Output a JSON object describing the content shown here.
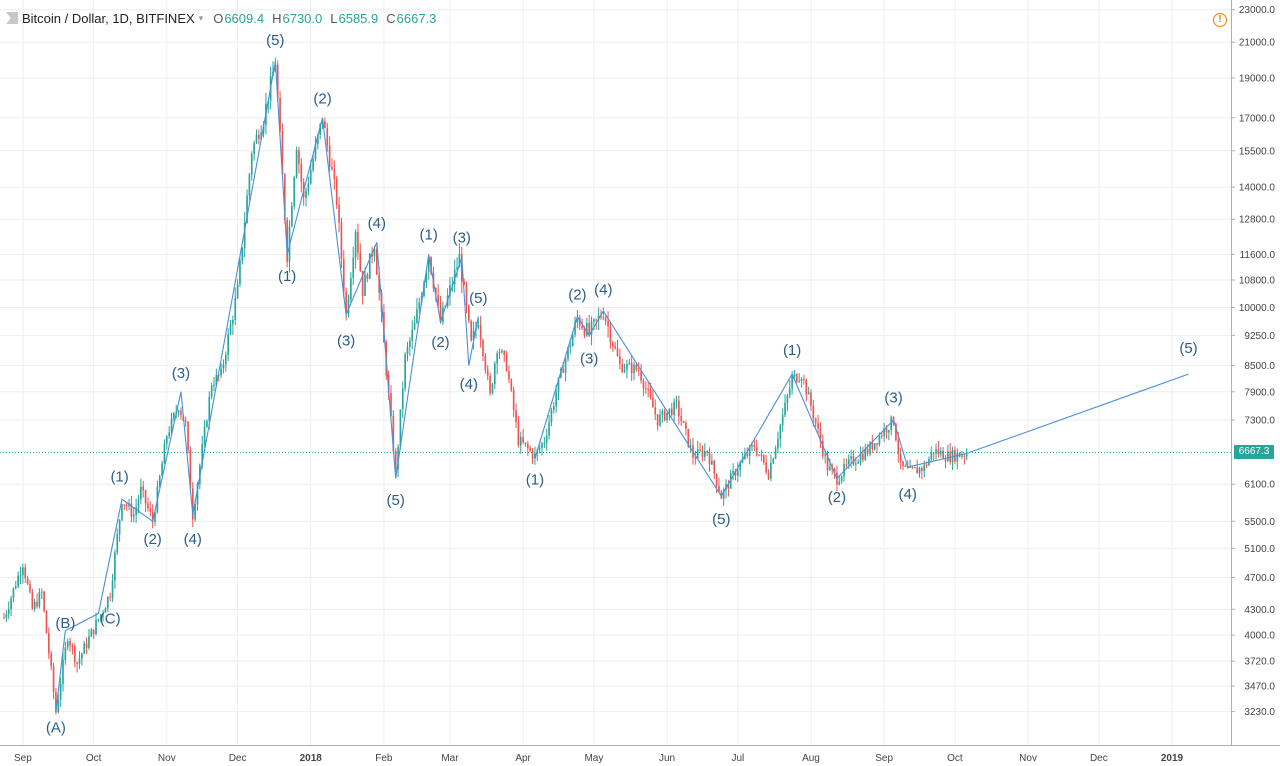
{
  "header": {
    "symbol": "Bitcoin / Dollar, 1D, BITFINEX",
    "dropdown": "▾",
    "open_label": "O",
    "open": "6609.4",
    "high_label": "H",
    "high": "6730.0",
    "low_label": "L",
    "low": "6585.9",
    "close_label": "C",
    "close": "6667.3"
  },
  "alert_icon": "!",
  "colors": {
    "up": "#26a69a",
    "down": "#ef5350",
    "wave": "#4a90d9",
    "label": "#2b5c8a",
    "grid": "#eeeeee",
    "last_price": "#26a69a"
  },
  "chart_data": {
    "type": "candlestick",
    "title": "Bitcoin / Dollar, 1D, BITFINEX",
    "y_scale": "log",
    "ylim": [
      2950,
      23500
    ],
    "y_ticks": [
      3230,
      3470,
      3720,
      4000,
      4300,
      4700,
      5100,
      5500,
      6100,
      6667.3,
      7300,
      7900,
      8500,
      9250,
      10000,
      10800,
      11600,
      12800,
      14000,
      15500,
      17000,
      19000,
      21000,
      23000
    ],
    "y_tick_labels": [
      "3230.0",
      "3470.0",
      "3720.0",
      "4000.0",
      "4300.0",
      "4700.0",
      "5100.0",
      "5500.0",
      "6100.0",
      "6667.3",
      "7300.0",
      "7900.0",
      "8500.0",
      "9250.0",
      "10000.0",
      "10800.0",
      "11600.0",
      "12800.0",
      "14000.0",
      "15500.0",
      "17000.0",
      "19000.0",
      "21000.0",
      "23000.0"
    ],
    "x_range": [
      "2017-08-24",
      "2019-01-26"
    ],
    "x_ticks": [
      {
        "date": "2017-09-01",
        "label": "Sep"
      },
      {
        "date": "2017-10-01",
        "label": "Oct"
      },
      {
        "date": "2017-11-01",
        "label": "Nov"
      },
      {
        "date": "2017-12-01",
        "label": "Dec"
      },
      {
        "date": "2018-01-01",
        "label": "2018"
      },
      {
        "date": "2018-02-01",
        "label": "Feb"
      },
      {
        "date": "2018-03-01",
        "label": "Mar"
      },
      {
        "date": "2018-04-01",
        "label": "Apr"
      },
      {
        "date": "2018-05-01",
        "label": "May"
      },
      {
        "date": "2018-06-01",
        "label": "Jun"
      },
      {
        "date": "2018-07-01",
        "label": "Jul"
      },
      {
        "date": "2018-08-01",
        "label": "Aug"
      },
      {
        "date": "2018-09-01",
        "label": "Sep"
      },
      {
        "date": "2018-10-01",
        "label": "Oct"
      },
      {
        "date": "2018-11-01",
        "label": "Nov"
      },
      {
        "date": "2018-12-01",
        "label": "Dec"
      },
      {
        "date": "2019-01-01",
        "label": "2019"
      }
    ],
    "last_price": 6667.3,
    "last_price_label": "6667.3",
    "price_path": [
      [
        "2017-08-24",
        4200
      ],
      [
        "2017-09-01",
        4900
      ],
      [
        "2017-09-05",
        4300
      ],
      [
        "2017-09-09",
        4500
      ],
      [
        "2017-09-15",
        3230
      ],
      [
        "2017-09-20",
        4000
      ],
      [
        "2017-09-24",
        3700
      ],
      [
        "2017-10-05",
        4300
      ],
      [
        "2017-10-08",
        4500
      ],
      [
        "2017-10-13",
        5850
      ],
      [
        "2017-10-18",
        5600
      ],
      [
        "2017-10-21",
        6000
      ],
      [
        "2017-10-26",
        5500
      ],
      [
        "2017-11-01",
        7000
      ],
      [
        "2017-11-06",
        7600
      ],
      [
        "2017-11-09",
        7200
      ],
      [
        "2017-11-12",
        5600
      ],
      [
        "2017-11-20",
        8100
      ],
      [
        "2017-11-24",
        8300
      ],
      [
        "2017-12-01",
        10500
      ],
      [
        "2017-12-07",
        15500
      ],
      [
        "2017-12-12",
        17000
      ],
      [
        "2017-12-17",
        19900
      ],
      [
        "2017-12-22",
        11600
      ],
      [
        "2017-12-26",
        15800
      ],
      [
        "2017-12-29",
        13500
      ],
      [
        "2018-01-06",
        17000
      ],
      [
        "2018-01-12",
        13500
      ],
      [
        "2018-01-16",
        9800
      ],
      [
        "2018-01-20",
        12500
      ],
      [
        "2018-01-23",
        10500
      ],
      [
        "2018-01-28",
        12000
      ],
      [
        "2018-02-01",
        9000
      ],
      [
        "2018-02-06",
        6300
      ],
      [
        "2018-02-10",
        8700
      ],
      [
        "2018-02-14",
        9500
      ],
      [
        "2018-02-20",
        11600
      ],
      [
        "2018-02-25",
        9600
      ],
      [
        "2018-03-05",
        11500
      ],
      [
        "2018-03-10",
        9000
      ],
      [
        "2018-03-13",
        9700
      ],
      [
        "2018-03-18",
        7800
      ],
      [
        "2018-03-21",
        9000
      ],
      [
        "2018-03-25",
        8500
      ],
      [
        "2018-03-30",
        6900
      ],
      [
        "2018-04-06",
        6600
      ],
      [
        "2018-04-10",
        6900
      ],
      [
        "2018-04-16",
        8100
      ],
      [
        "2018-04-24",
        9700
      ],
      [
        "2018-04-29",
        9300
      ],
      [
        "2018-05-05",
        9900
      ],
      [
        "2018-05-12",
        8500
      ],
      [
        "2018-05-20",
        8400
      ],
      [
        "2018-05-28",
        7300
      ],
      [
        "2018-06-05",
        7600
      ],
      [
        "2018-06-12",
        6600
      ],
      [
        "2018-06-18",
        6700
      ],
      [
        "2018-06-24",
        5900
      ],
      [
        "2018-07-01",
        6400
      ],
      [
        "2018-07-08",
        6800
      ],
      [
        "2018-07-14",
        6300
      ],
      [
        "2018-07-24",
        8200
      ],
      [
        "2018-07-28",
        8300
      ],
      [
        "2018-08-01",
        7600
      ],
      [
        "2018-08-08",
        6400
      ],
      [
        "2018-08-12",
        6200
      ],
      [
        "2018-08-18",
        6500
      ],
      [
        "2018-08-25",
        6700
      ],
      [
        "2018-09-01",
        7100
      ],
      [
        "2018-09-05",
        7300
      ],
      [
        "2018-09-08",
        6400
      ],
      [
        "2018-09-12",
        6300
      ],
      [
        "2018-09-18",
        6400
      ],
      [
        "2018-09-22",
        6700
      ],
      [
        "2018-09-28",
        6600
      ],
      [
        "2018-10-06",
        6650
      ]
    ],
    "wave_lines": [
      [
        [
          "2017-09-15",
          3230
        ],
        [
          "2017-09-19",
          4050
        ],
        [
          "2017-10-03",
          4250
        ],
        [
          "2017-10-13",
          5850
        ],
        [
          "2017-10-26",
          5500
        ],
        [
          "2017-11-07",
          7900
        ],
        [
          "2017-11-12",
          5600
        ],
        [
          "2017-12-17",
          19900
        ],
        [
          "2017-12-22",
          11600
        ],
        [
          "2018-01-06",
          17000
        ],
        [
          "2018-01-16",
          9800
        ],
        [
          "2018-01-29",
          12000
        ],
        [
          "2018-02-06",
          6200
        ],
        [
          "2018-02-20",
          11600
        ],
        [
          "2018-02-25",
          9600
        ],
        [
          "2018-03-06",
          11500
        ],
        [
          "2018-03-09",
          8500
        ],
        [
          "2018-03-13",
          9750
        ]
      ],
      [
        [
          "2018-04-06",
          6550
        ],
        [
          "2018-04-24",
          9750
        ],
        [
          "2018-04-29",
          9250
        ],
        [
          "2018-05-05",
          9900
        ],
        [
          "2018-06-24",
          5900
        ],
        [
          "2018-07-24",
          8300
        ],
        [
          "2018-08-12",
          6200
        ],
        [
          "2018-09-05",
          7300
        ],
        [
          "2018-09-11",
          6400
        ],
        [
          "2018-10-06",
          6650
        ],
        [
          "2019-01-08",
          8300
        ]
      ]
    ],
    "annotations": [
      {
        "text": "(A)",
        "date": "2017-09-15",
        "price": 3100
      },
      {
        "text": "(B)",
        "date": "2017-09-19",
        "price": 4150
      },
      {
        "text": "(C)",
        "date": "2017-10-08",
        "price": 4200
      },
      {
        "text": "(1)",
        "date": "2017-10-12",
        "price": 6250
      },
      {
        "text": "(2)",
        "date": "2017-10-26",
        "price": 5250
      },
      {
        "text": "(3)",
        "date": "2017-11-07",
        "price": 8350
      },
      {
        "text": "(4)",
        "date": "2017-11-12",
        "price": 5250
      },
      {
        "text": "(5)",
        "date": "2017-12-17",
        "price": 21200
      },
      {
        "text": "(1)",
        "date": "2017-12-22",
        "price": 10950
      },
      {
        "text": "(2)",
        "date": "2018-01-06",
        "price": 18000
      },
      {
        "text": "(3)",
        "date": "2018-01-16",
        "price": 9150
      },
      {
        "text": "(4)",
        "date": "2018-01-29",
        "price": 12700
      },
      {
        "text": "(5)",
        "date": "2018-02-06",
        "price": 5850
      },
      {
        "text": "(1)",
        "date": "2018-02-20",
        "price": 12300
      },
      {
        "text": "(2)",
        "date": "2018-02-25",
        "price": 9100
      },
      {
        "text": "(3)",
        "date": "2018-03-06",
        "price": 12200
      },
      {
        "text": "(4)",
        "date": "2018-03-09",
        "price": 8100
      },
      {
        "text": "(5)",
        "date": "2018-03-13",
        "price": 10300
      },
      {
        "text": "(1)",
        "date": "2018-04-06",
        "price": 6200
      },
      {
        "text": "(2)",
        "date": "2018-04-24",
        "price": 10400
      },
      {
        "text": "(3)",
        "date": "2018-04-29",
        "price": 8700
      },
      {
        "text": "(4)",
        "date": "2018-05-05",
        "price": 10550
      },
      {
        "text": "(5)",
        "date": "2018-06-24",
        "price": 5550
      },
      {
        "text": "(1)",
        "date": "2018-07-24",
        "price": 8900
      },
      {
        "text": "(2)",
        "date": "2018-08-12",
        "price": 5900
      },
      {
        "text": "(3)",
        "date": "2018-09-05",
        "price": 7800
      },
      {
        "text": "(4)",
        "date": "2018-09-11",
        "price": 5950
      },
      {
        "text": "(5)",
        "date": "2019-01-08",
        "price": 8950
      }
    ]
  }
}
